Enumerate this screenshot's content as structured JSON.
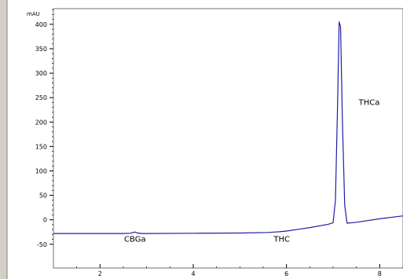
{
  "chart_data": {
    "type": "line",
    "ylabel": "mAU",
    "xlim": [
      1.0,
      8.5
    ],
    "ylim": [
      -52,
      432
    ],
    "x_ticks": [
      2,
      4,
      6,
      8
    ],
    "y_ticks": [
      -50,
      0,
      50,
      100,
      150,
      200,
      250,
      300,
      350,
      400
    ],
    "grid": false,
    "series": [
      {
        "x": [
          1.0,
          2.5,
          2.65,
          2.75,
          2.8,
          2.9,
          3.0,
          4.0,
          5.0,
          5.6,
          5.75,
          5.85,
          6.0,
          6.5,
          6.9,
          7.0,
          7.05,
          7.1,
          7.13,
          7.16,
          7.2,
          7.25,
          7.3,
          7.5,
          8.0,
          8.5
        ],
        "values": [
          -28,
          -28,
          -27.5,
          -25,
          -27,
          -28,
          -28,
          -27.5,
          -27,
          -26,
          -25,
          -24.5,
          -23,
          -16,
          -9,
          -6,
          40,
          250,
          405,
          395,
          200,
          30,
          -7,
          -5,
          2,
          8
        ]
      }
    ],
    "annotations": [
      {
        "label": "CBGa",
        "x": 2.75,
        "y": -45
      },
      {
        "label": "THC",
        "x": 5.9,
        "y": -45
      },
      {
        "label": "THCa",
        "x": 7.55,
        "y": 235
      }
    ]
  }
}
